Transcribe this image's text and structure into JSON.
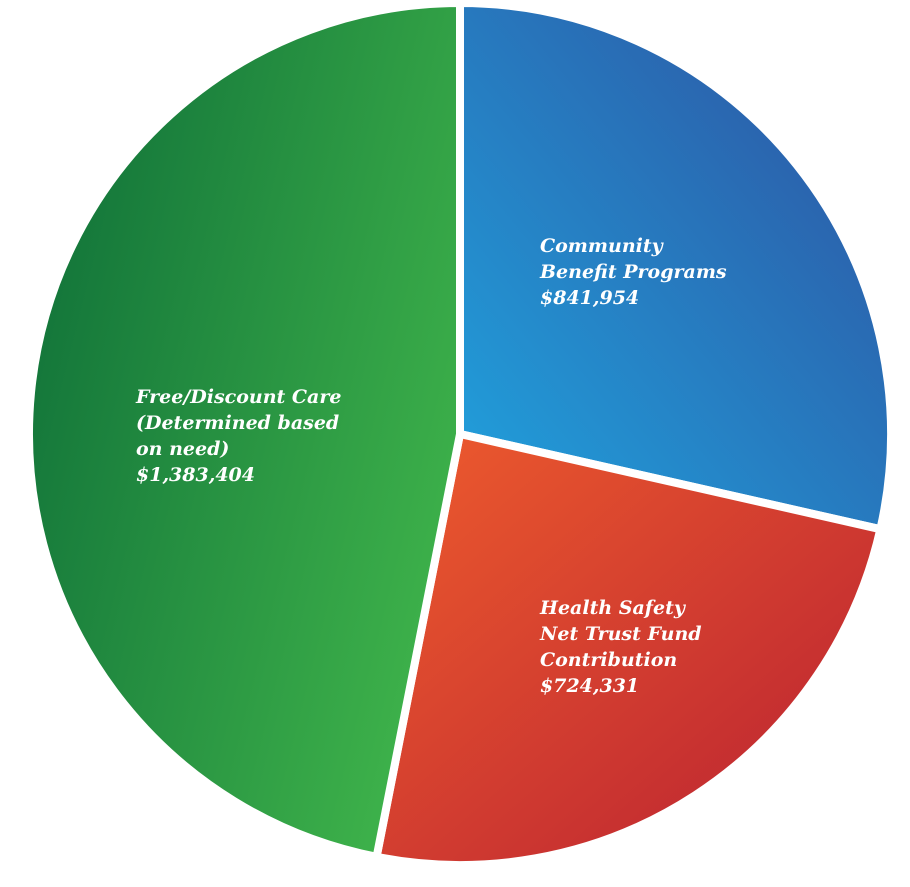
{
  "chart_data": {
    "type": "pie",
    "title": "",
    "slices": [
      {
        "name": "Community Benefit Programs",
        "value": 841954,
        "label_lines": [
          "Community",
          "Benefit Programs",
          "$841,954"
        ],
        "color_a": "#20A3DE",
        "color_b": "#2E4F9E"
      },
      {
        "name": "Health Safety Net Trust Fund Contribution",
        "value": 724331,
        "label_lines": [
          "Health Safety",
          "Net Trust Fund",
          "Contribution",
          "$724,331"
        ],
        "color_a": "#EE5C2D",
        "color_b": "#B71F32"
      },
      {
        "name": "Free/Discount Care (Determined based on need)",
        "value": 1383404,
        "label_lines": [
          "Free/Discount Care",
          "(Determined based",
          "on need)",
          "$1,383,404"
        ],
        "color_a": "#3DB14A",
        "color_b": "#0E6E38"
      }
    ],
    "start_angle_deg": 0,
    "direction": "clockwise",
    "legend": "none"
  }
}
